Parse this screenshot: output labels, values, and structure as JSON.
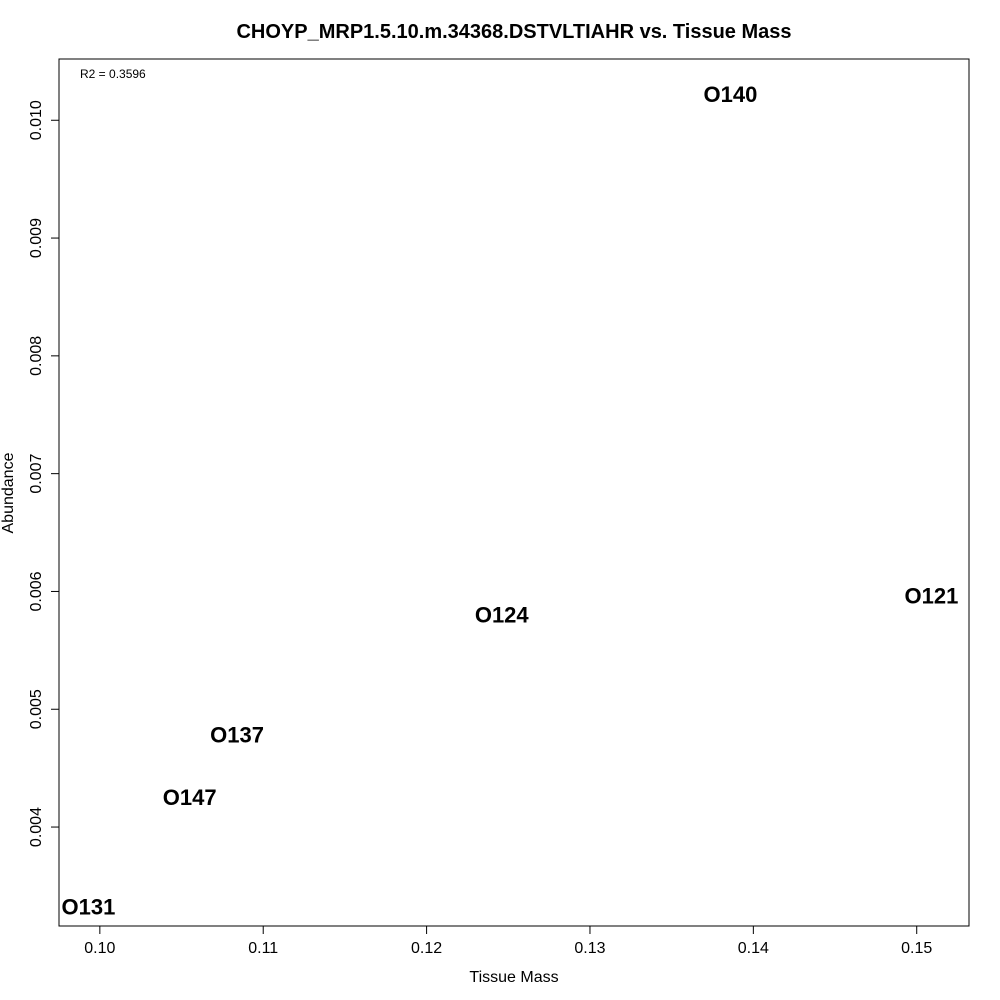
{
  "chart_data": {
    "type": "scatter",
    "title": "CHOYP_MRP1.5.10.m.34368.DSTVLTIAHR vs. Tissue Mass",
    "xlabel": "Tissue Mass",
    "ylabel": "Abundance",
    "annotation": "R2 = 0.3596",
    "xlim": [
      0.0975,
      0.1532
    ],
    "ylim": [
      0.00316,
      0.01052
    ],
    "xticks": [
      0.1,
      0.11,
      0.12,
      0.13,
      0.14,
      0.15
    ],
    "xtick_labels": [
      "0.10",
      "0.11",
      "0.12",
      "0.13",
      "0.14",
      "0.15"
    ],
    "yticks": [
      0.004,
      0.005,
      0.006,
      0.007,
      0.008,
      0.009,
      0.01
    ],
    "ytick_labels": [
      "0.004",
      "0.005",
      "0.006",
      "0.007",
      "0.008",
      "0.009",
      "0.010"
    ],
    "grid": false,
    "points": [
      {
        "label": "O140",
        "x": 0.1386,
        "y": 0.01022
      },
      {
        "label": "O121",
        "x": 0.1509,
        "y": 0.00596
      },
      {
        "label": "O124",
        "x": 0.1246,
        "y": 0.0058
      },
      {
        "label": "O137",
        "x": 0.1084,
        "y": 0.00478
      },
      {
        "label": "O147",
        "x": 0.1055,
        "y": 0.00425
      },
      {
        "label": "O131",
        "x": 0.0993,
        "y": 0.00332
      }
    ]
  }
}
